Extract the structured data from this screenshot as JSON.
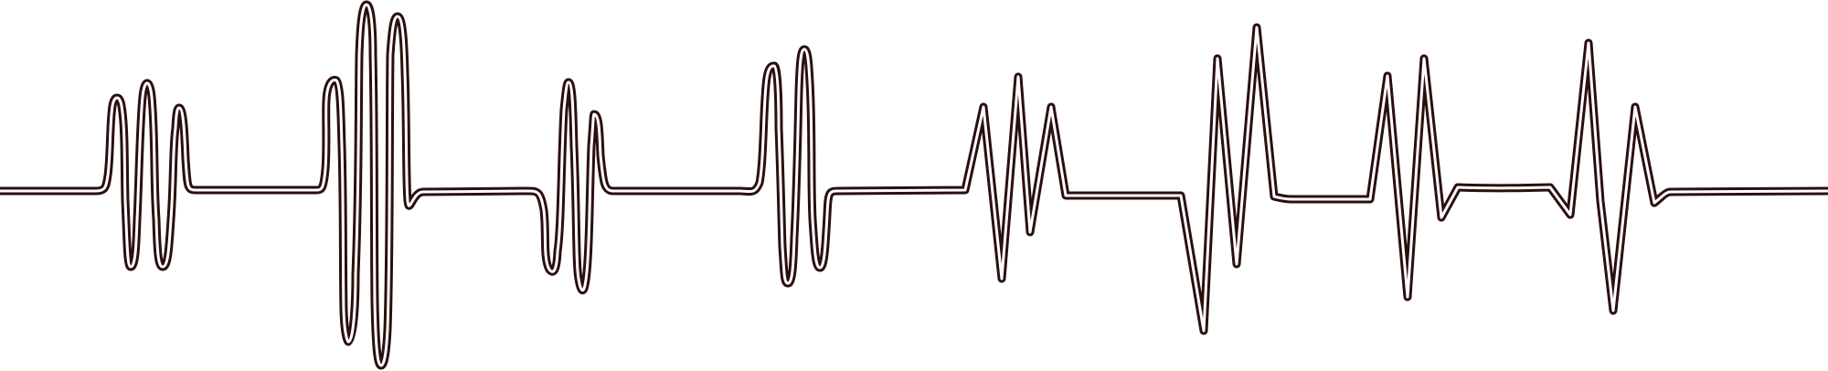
{
  "illustration": {
    "subject": "heartbeat-line",
    "colors": {
      "stroke": "#2b0f0f",
      "background": "#ffffff"
    }
  }
}
